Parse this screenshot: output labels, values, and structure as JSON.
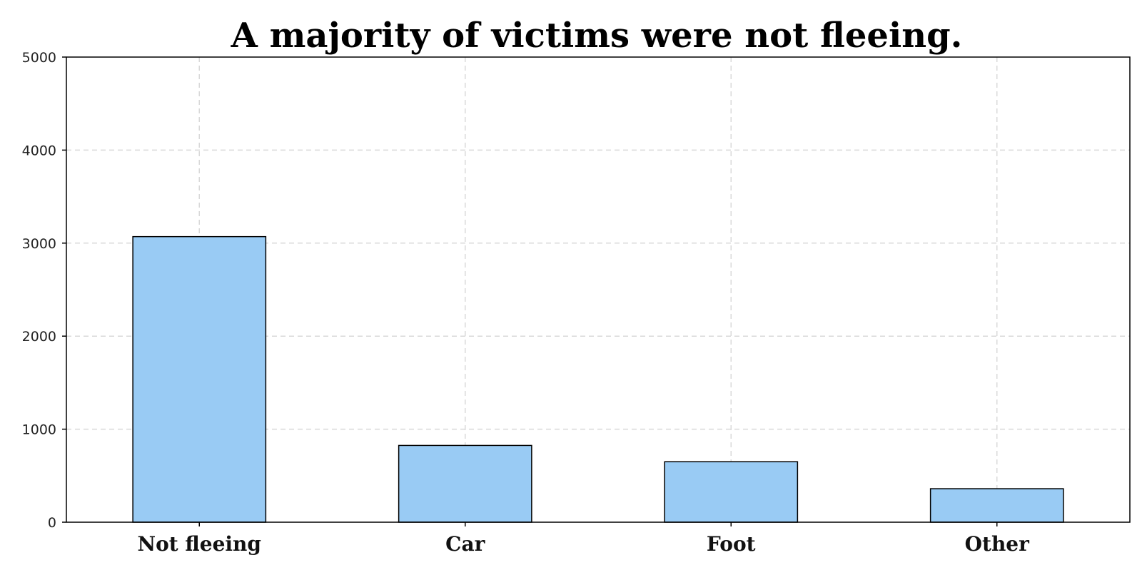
{
  "chart_data": {
    "type": "bar",
    "title": "A majority of victims were not fleeing.",
    "categories": [
      "Not fleeing",
      "Car",
      "Foot",
      "Other"
    ],
    "values": [
      3070,
      825,
      650,
      360
    ],
    "xlabel": "",
    "ylabel": "",
    "ylim": [
      0,
      5000
    ],
    "yticks": [
      0,
      1000,
      2000,
      3000,
      4000,
      5000
    ],
    "grid": true,
    "legend": "none",
    "bar_color": "#99cbf4",
    "edge_color": "#000000"
  }
}
